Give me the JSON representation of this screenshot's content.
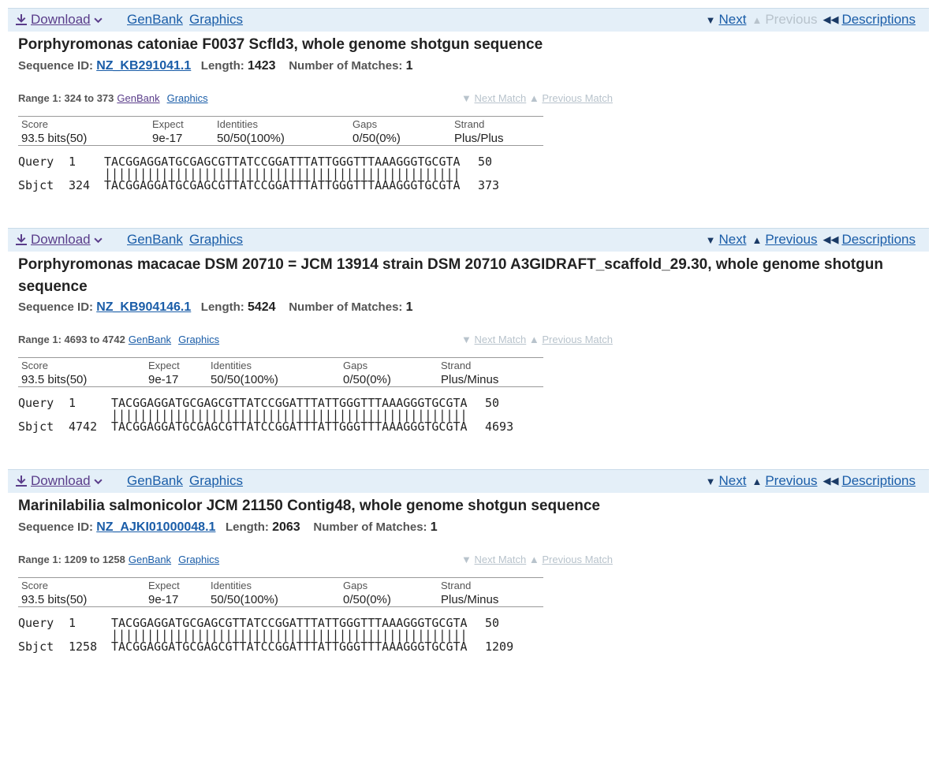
{
  "hits": [
    {
      "toolbar": {
        "download": "Download",
        "genbank": "GenBank",
        "graphics": "Graphics",
        "next": "Next",
        "previous": "Previous",
        "descriptions": "Descriptions",
        "previous_enabled": false
      },
      "title": "Porphyromonas catoniae F0037 Scfld3, whole genome shotgun sequence",
      "seq_id_label": "Sequence ID:",
      "seq_id": "NZ_KB291041.1",
      "length_label": "Length:",
      "length": "1423",
      "matches_label": "Number of Matches:",
      "matches": "1",
      "range": "Range 1: 324 to 373",
      "range_genbank": "GenBank",
      "range_graphics": "Graphics",
      "next_match": "Next Match",
      "previous_match": "Previous Match",
      "stats_headers": [
        "Score",
        "Expect",
        "Identities",
        "Gaps",
        "Strand"
      ],
      "stats_values": [
        "93.5 bits(50)",
        "9e-17",
        "50/50(100%)",
        "0/50(0%)",
        "Plus/Plus"
      ],
      "query_label": "Query",
      "query_start": "1",
      "query_seq": "TACGGAGGATGCGAGCGTTATCCGGATTTATTGGGTTTAAAGGGTGCGTA",
      "query_end": "50",
      "sbjct_label": "Sbjct",
      "sbjct_start": "324",
      "sbjct_seq": "TACGGAGGATGCGAGCGTTATCCGGATTTATTGGGTTTAAAGGGTGCGTA",
      "sbjct_end": "373",
      "match_line": "||||||||||||||||||||||||||||||||||||||||||||||||||"
    },
    {
      "toolbar": {
        "download": "Download",
        "genbank": "GenBank",
        "graphics": "Graphics",
        "next": "Next",
        "previous": "Previous",
        "descriptions": "Descriptions",
        "previous_enabled": true
      },
      "title": "Porphyromonas macacae DSM 20710 = JCM 13914 strain DSM 20710 A3GIDRAFT_scaffold_29.30, whole genome shotgun sequence",
      "seq_id_label": "Sequence ID:",
      "seq_id": "NZ_KB904146.1",
      "length_label": "Length:",
      "length": "5424",
      "matches_label": "Number of Matches:",
      "matches": "1",
      "range": "Range 1: 4693 to 4742",
      "range_genbank": "GenBank",
      "range_graphics": "Graphics",
      "next_match": "Next Match",
      "previous_match": "Previous Match",
      "stats_headers": [
        "Score",
        "Expect",
        "Identities",
        "Gaps",
        "Strand"
      ],
      "stats_values": [
        "93.5 bits(50)",
        "9e-17",
        "50/50(100%)",
        "0/50(0%)",
        "Plus/Minus"
      ],
      "query_label": "Query",
      "query_start": "1",
      "query_seq": "TACGGAGGATGCGAGCGTTATCCGGATTTATTGGGTTTAAAGGGTGCGTA",
      "query_end": "50",
      "sbjct_label": "Sbjct",
      "sbjct_start": "4742",
      "sbjct_seq": "TACGGAGGATGCGAGCGTTATCCGGATTTATTGGGTTTAAAGGGTGCGTA",
      "sbjct_end": "4693",
      "match_line": "||||||||||||||||||||||||||||||||||||||||||||||||||"
    },
    {
      "toolbar": {
        "download": "Download",
        "genbank": "GenBank",
        "graphics": "Graphics",
        "next": "Next",
        "previous": "Previous",
        "descriptions": "Descriptions",
        "previous_enabled": true
      },
      "title": "Marinilabilia salmonicolor JCM 21150 Contig48, whole genome shotgun sequence",
      "seq_id_label": "Sequence ID:",
      "seq_id": "NZ_AJKI01000048.1",
      "length_label": "Length:",
      "length": "2063",
      "matches_label": "Number of Matches:",
      "matches": "1",
      "range": "Range 1: 1209 to 1258",
      "range_genbank": "GenBank",
      "range_graphics": "Graphics",
      "next_match": "Next Match",
      "previous_match": "Previous Match",
      "stats_headers": [
        "Score",
        "Expect",
        "Identities",
        "Gaps",
        "Strand"
      ],
      "stats_values": [
        "93.5 bits(50)",
        "9e-17",
        "50/50(100%)",
        "0/50(0%)",
        "Plus/Minus"
      ],
      "query_label": "Query",
      "query_start": "1",
      "query_seq": "TACGGAGGATGCGAGCGTTATCCGGATTTATTGGGTTTAAAGGGTGCGTA",
      "query_end": "50",
      "sbjct_label": "Sbjct",
      "sbjct_start": "1258",
      "sbjct_seq": "TACGGAGGATGCGAGCGTTATCCGGATTTATTGGGTTTAAAGGGTGCGTA",
      "sbjct_end": "1209",
      "match_line": "||||||||||||||||||||||||||||||||||||||||||||||||||"
    }
  ]
}
